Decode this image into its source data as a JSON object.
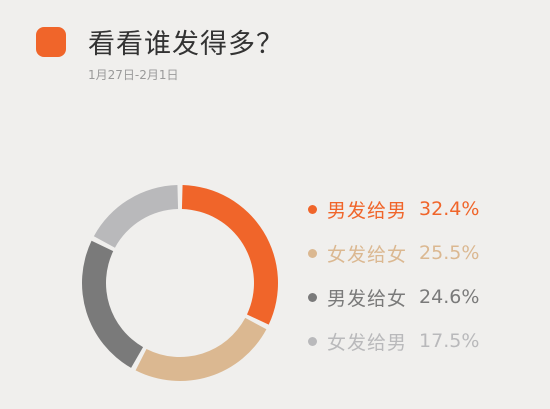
{
  "header": {
    "title": "看看谁发得多？",
    "date_range": "1月27日-2月1日",
    "accent_color": "#f0652a"
  },
  "chart_data": {
    "type": "pie",
    "variant": "donut",
    "categories": [
      "男发给男",
      "女发给女",
      "男发给女",
      "女发给男"
    ],
    "values": [
      32.4,
      25.5,
      24.6,
      17.5
    ],
    "value_labels": [
      "32.4%",
      "25.5%",
      "24.6%",
      "17.5%"
    ],
    "colors": [
      "#f0652a",
      "#dbb891",
      "#7a7a7a",
      "#b9b9bb"
    ],
    "legend_position": "right"
  }
}
